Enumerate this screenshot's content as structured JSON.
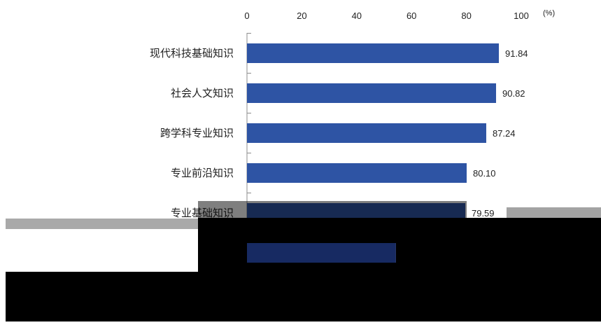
{
  "chart_data": {
    "type": "bar",
    "orientation": "horizontal",
    "categories": [
      "现代科技基础知识",
      "社会人文知识",
      "跨学科专业知识",
      "专业前沿知识",
      "专业基础知识",
      ""
    ],
    "values": [
      91.84,
      90.82,
      87.24,
      80.1,
      79.59,
      54.3
    ],
    "data_labels": [
      "91.84",
      "90.82",
      "87.24",
      "80.10",
      "79.59",
      ""
    ],
    "xlim": [
      0,
      100
    ],
    "x_ticks": [
      0,
      20,
      40,
      60,
      80,
      100
    ],
    "xlabel": "(%)",
    "grid": false,
    "bar_color": "#2E54A4"
  }
}
